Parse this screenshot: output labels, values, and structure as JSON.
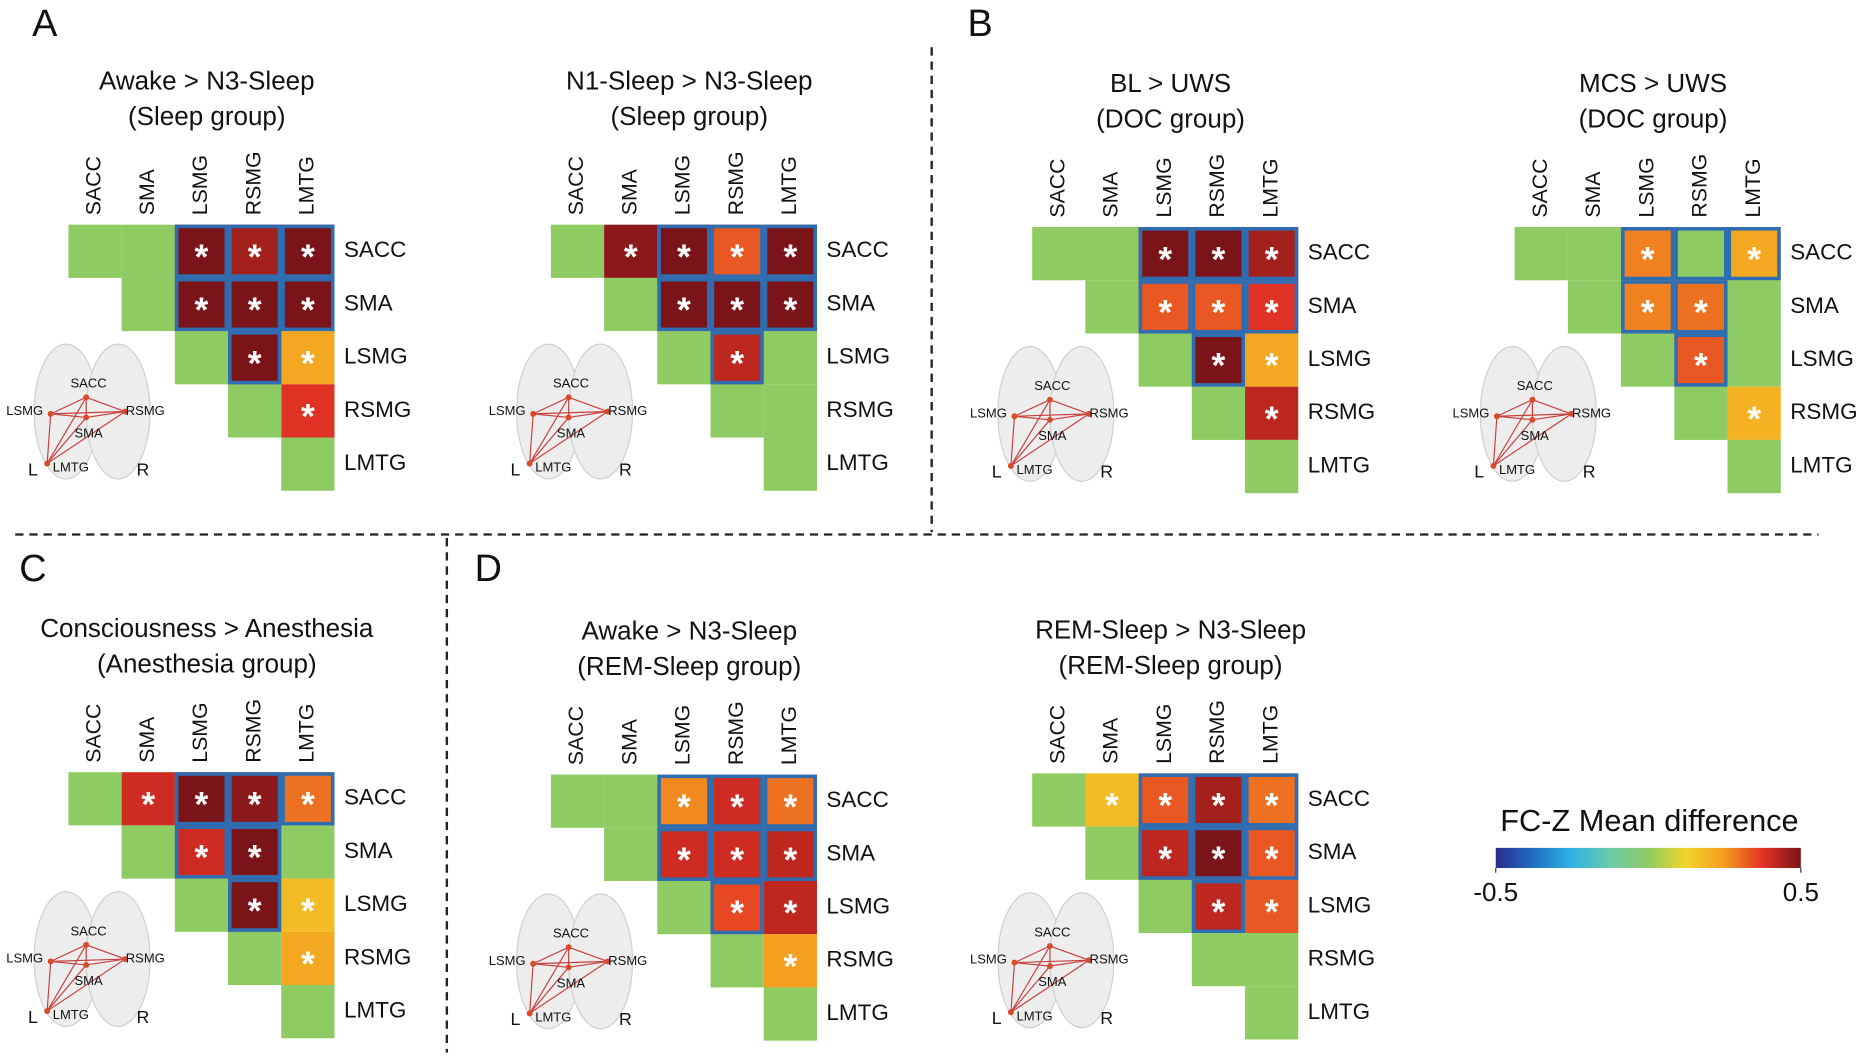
{
  "significance_mark": "*",
  "brain": {
    "nodes": [
      "SACC",
      "LSMG",
      "RSMG",
      "SMA",
      "LMTG"
    ],
    "left": "L",
    "right": "R"
  },
  "colorbar": {
    "title": "FC-Z Mean difference",
    "lim": [
      -0.5,
      0.5
    ],
    "ticks": [
      -0.5,
      0.5
    ],
    "colors": [
      "#2a2d8e",
      "#1f6fc2",
      "#2fb3e4",
      "#6cc9a9",
      "#8ecb62",
      "#f2d52a",
      "#f59a1f",
      "#e33224",
      "#7a1419"
    ]
  },
  "chart_data": [
    {
      "type": "heatmap",
      "panel_label": "A",
      "title": [
        "Awake > N3-Sleep",
        "(Sleep group)"
      ],
      "categories": [
        "SACC",
        "SMA",
        "LSMG",
        "RSMG",
        "LMTG"
      ],
      "values": [
        [
          0,
          0,
          0.5,
          0.45,
          0.5
        ],
        [
          null,
          0,
          0.5,
          0.5,
          0.5
        ],
        [
          null,
          null,
          0,
          0.5,
          0.22
        ],
        [
          null,
          null,
          null,
          0,
          0.38
        ],
        [
          null,
          null,
          null,
          null,
          0
        ]
      ],
      "stars": [
        [
          false,
          false,
          true,
          true,
          true
        ],
        [
          false,
          false,
          true,
          true,
          true
        ],
        [
          false,
          false,
          false,
          true,
          true
        ],
        [
          false,
          false,
          false,
          false,
          true
        ],
        [
          false,
          false,
          false,
          false,
          false
        ]
      ],
      "outlined": [
        [
          false,
          false,
          true,
          true,
          true
        ],
        [
          false,
          false,
          true,
          true,
          true
        ],
        [
          false,
          false,
          false,
          true,
          false
        ],
        [
          false,
          false,
          false,
          false,
          false
        ],
        [
          false,
          false,
          false,
          false,
          false
        ]
      ]
    },
    {
      "type": "heatmap",
      "title": [
        "N1-Sleep > N3-Sleep",
        "(Sleep group)"
      ],
      "categories": [
        "SACC",
        "SMA",
        "LSMG",
        "RSMG",
        "LMTG"
      ],
      "values": [
        [
          0,
          0.48,
          0.5,
          0.33,
          0.5
        ],
        [
          null,
          0,
          0.5,
          0.5,
          0.5
        ],
        [
          null,
          null,
          0,
          0.42,
          0
        ],
        [
          null,
          null,
          null,
          0,
          0
        ],
        [
          null,
          null,
          null,
          null,
          0
        ]
      ],
      "stars": [
        [
          false,
          true,
          true,
          true,
          true
        ],
        [
          false,
          false,
          true,
          true,
          true
        ],
        [
          false,
          false,
          false,
          true,
          false
        ],
        [
          false,
          false,
          false,
          false,
          false
        ],
        [
          false,
          false,
          false,
          false,
          false
        ]
      ],
      "outlined": [
        [
          false,
          false,
          true,
          true,
          true
        ],
        [
          false,
          false,
          true,
          true,
          true
        ],
        [
          false,
          false,
          false,
          true,
          false
        ],
        [
          false,
          false,
          false,
          false,
          false
        ],
        [
          false,
          false,
          false,
          false,
          false
        ]
      ]
    },
    {
      "type": "heatmap",
      "panel_label": "B",
      "title": [
        "BL > UWS",
        "(DOC group)"
      ],
      "categories": [
        "SACC",
        "SMA",
        "LSMG",
        "RSMG",
        "LMTG"
      ],
      "values": [
        [
          0,
          0,
          0.5,
          0.5,
          0.45
        ],
        [
          null,
          0,
          0.33,
          0.33,
          0.38
        ],
        [
          null,
          null,
          0,
          0.5,
          0.22
        ],
        [
          null,
          null,
          null,
          0,
          0.42
        ],
        [
          null,
          null,
          null,
          null,
          0
        ]
      ],
      "stars": [
        [
          false,
          false,
          true,
          true,
          true
        ],
        [
          false,
          false,
          true,
          true,
          true
        ],
        [
          false,
          false,
          false,
          true,
          true
        ],
        [
          false,
          false,
          false,
          false,
          true
        ],
        [
          false,
          false,
          false,
          false,
          false
        ]
      ],
      "outlined": [
        [
          false,
          false,
          true,
          true,
          true
        ],
        [
          false,
          false,
          true,
          true,
          true
        ],
        [
          false,
          false,
          false,
          true,
          false
        ],
        [
          false,
          false,
          false,
          false,
          false
        ],
        [
          false,
          false,
          false,
          false,
          false
        ]
      ]
    },
    {
      "type": "heatmap",
      "title": [
        "MCS > UWS",
        "(DOC group)"
      ],
      "categories": [
        "SACC",
        "SMA",
        "LSMG",
        "RSMG",
        "LMTG"
      ],
      "values": [
        [
          0,
          0,
          0.28,
          0,
          0.22
        ],
        [
          null,
          0,
          0.28,
          0.3,
          0
        ],
        [
          null,
          null,
          0,
          0.33,
          0
        ],
        [
          null,
          null,
          null,
          0,
          0.2
        ],
        [
          null,
          null,
          null,
          null,
          0
        ]
      ],
      "stars": [
        [
          false,
          false,
          true,
          false,
          true
        ],
        [
          false,
          false,
          true,
          true,
          false
        ],
        [
          false,
          false,
          false,
          true,
          false
        ],
        [
          false,
          false,
          false,
          false,
          true
        ],
        [
          false,
          false,
          false,
          false,
          false
        ]
      ],
      "outlined": [
        [
          false,
          false,
          true,
          true,
          true
        ],
        [
          false,
          false,
          true,
          true,
          false
        ],
        [
          false,
          false,
          false,
          true,
          false
        ],
        [
          false,
          false,
          false,
          false,
          false
        ],
        [
          false,
          false,
          false,
          false,
          false
        ]
      ]
    },
    {
      "type": "heatmap",
      "panel_label": "C",
      "title": [
        "Consciousness > Anesthesia",
        "(Anesthesia group)"
      ],
      "categories": [
        "SACC",
        "SMA",
        "LSMG",
        "RSMG",
        "LMTG"
      ],
      "values": [
        [
          0,
          0.4,
          0.5,
          0.48,
          0.3
        ],
        [
          null,
          0,
          0.4,
          0.5,
          0
        ],
        [
          null,
          null,
          0,
          0.5,
          0.18
        ],
        [
          null,
          null,
          null,
          0,
          0.22
        ],
        [
          null,
          null,
          null,
          null,
          0
        ]
      ],
      "stars": [
        [
          false,
          true,
          true,
          true,
          true
        ],
        [
          false,
          false,
          true,
          true,
          false
        ],
        [
          false,
          false,
          false,
          true,
          true
        ],
        [
          false,
          false,
          false,
          false,
          true
        ],
        [
          false,
          false,
          false,
          false,
          false
        ]
      ],
      "outlined": [
        [
          false,
          false,
          true,
          true,
          true
        ],
        [
          false,
          false,
          true,
          true,
          false
        ],
        [
          false,
          false,
          false,
          true,
          false
        ],
        [
          false,
          false,
          false,
          false,
          false
        ],
        [
          false,
          false,
          false,
          false,
          false
        ]
      ]
    },
    {
      "type": "heatmap",
      "panel_label": "D",
      "title": [
        "Awake > N3-Sleep",
        "(REM-Sleep group)"
      ],
      "categories": [
        "SACC",
        "SMA",
        "LSMG",
        "RSMG",
        "LMTG"
      ],
      "values": [
        [
          0,
          0,
          0.27,
          0.4,
          0.3
        ],
        [
          null,
          0,
          0.4,
          0.4,
          0.42
        ],
        [
          null,
          null,
          0,
          0.35,
          0.42
        ],
        [
          null,
          null,
          null,
          0,
          0.24
        ],
        [
          null,
          null,
          null,
          null,
          0
        ]
      ],
      "stars": [
        [
          false,
          false,
          true,
          true,
          true
        ],
        [
          false,
          false,
          true,
          true,
          true
        ],
        [
          false,
          false,
          false,
          true,
          true
        ],
        [
          false,
          false,
          false,
          false,
          true
        ],
        [
          false,
          false,
          false,
          false,
          false
        ]
      ],
      "outlined": [
        [
          false,
          false,
          true,
          true,
          true
        ],
        [
          false,
          false,
          true,
          true,
          true
        ],
        [
          false,
          false,
          false,
          true,
          false
        ],
        [
          false,
          false,
          false,
          false,
          false
        ],
        [
          false,
          false,
          false,
          false,
          false
        ]
      ]
    },
    {
      "type": "heatmap",
      "title": [
        "REM-Sleep > N3-Sleep",
        "(REM-Sleep group)"
      ],
      "categories": [
        "SACC",
        "SMA",
        "LSMG",
        "RSMG",
        "LMTG"
      ],
      "values": [
        [
          0,
          0.18,
          0.33,
          0.45,
          0.3
        ],
        [
          null,
          0,
          0.42,
          0.5,
          0.33
        ],
        [
          null,
          null,
          0,
          0.42,
          0.33
        ],
        [
          null,
          null,
          null,
          0,
          0
        ],
        [
          null,
          null,
          null,
          null,
          0
        ]
      ],
      "stars": [
        [
          false,
          true,
          true,
          true,
          true
        ],
        [
          false,
          false,
          true,
          true,
          true
        ],
        [
          false,
          false,
          false,
          true,
          true
        ],
        [
          false,
          false,
          false,
          false,
          false
        ],
        [
          false,
          false,
          false,
          false,
          false
        ]
      ],
      "outlined": [
        [
          false,
          false,
          true,
          true,
          true
        ],
        [
          false,
          false,
          true,
          true,
          true
        ],
        [
          false,
          false,
          false,
          true,
          false
        ],
        [
          false,
          false,
          false,
          false,
          false
        ],
        [
          false,
          false,
          false,
          false,
          false
        ]
      ]
    }
  ]
}
